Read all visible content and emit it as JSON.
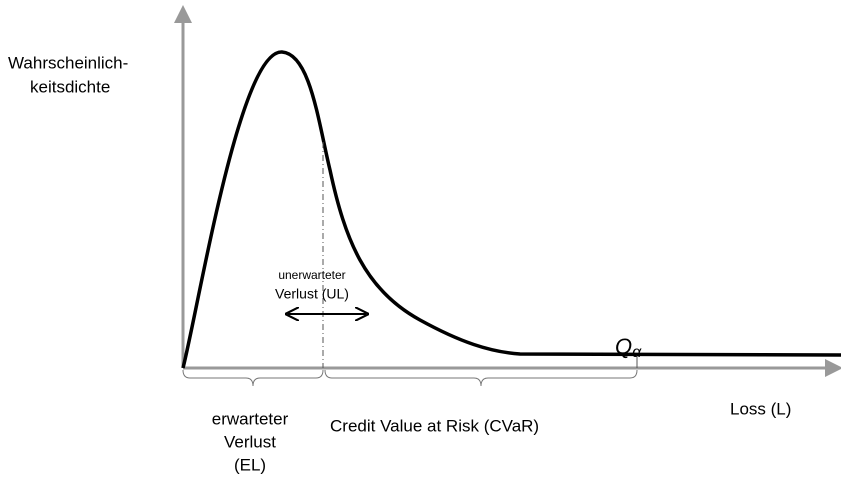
{
  "y_axis_label": [
    "Wahrscheinlich-",
    "keitsdichte"
  ],
  "x_axis_label": "Loss (L)",
  "quantile_label": {
    "base": "Q",
    "subscript": "α"
  },
  "unexpected_loss_label": [
    "unerwarteter",
    "Verlust (UL)"
  ],
  "expected_loss_label": [
    "erwarteter",
    "Verlust",
    "(EL)"
  ],
  "cvar_label": "Credit Value at Risk (CVaR)"
}
